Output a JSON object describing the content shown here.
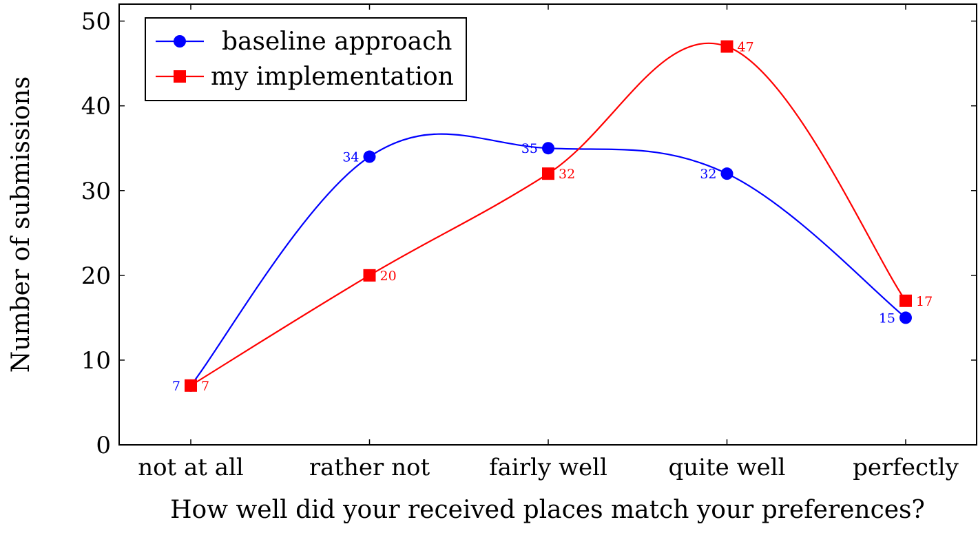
{
  "chart_data": {
    "type": "line",
    "title": "",
    "xlabel": "How well did your received places match your preferences?",
    "ylabel": "Number of submissions",
    "categories": [
      "not at all",
      "rather not",
      "fairly well",
      "quite well",
      "perfectly"
    ],
    "ylim": [
      0,
      52
    ],
    "yticks": [
      "0",
      "10",
      "20",
      "30",
      "40",
      "50"
    ],
    "ytick_values": [
      0,
      10,
      20,
      30,
      40,
      50
    ],
    "smooth": true,
    "grid": false,
    "legend_position": "top-left",
    "series": [
      {
        "name": "baseline approach",
        "values": [
          7,
          34,
          35,
          32,
          15
        ],
        "labels": [
          "7",
          "34",
          "35",
          "32",
          "15"
        ],
        "color": "#0000ff",
        "marker": "circle",
        "label_side": "left"
      },
      {
        "name": "my implementation",
        "values": [
          7,
          20,
          32,
          47,
          17
        ],
        "labels": [
          "7",
          "20",
          "32",
          "47",
          "17"
        ],
        "color": "#ff0000",
        "marker": "square",
        "label_side": "right"
      }
    ]
  }
}
